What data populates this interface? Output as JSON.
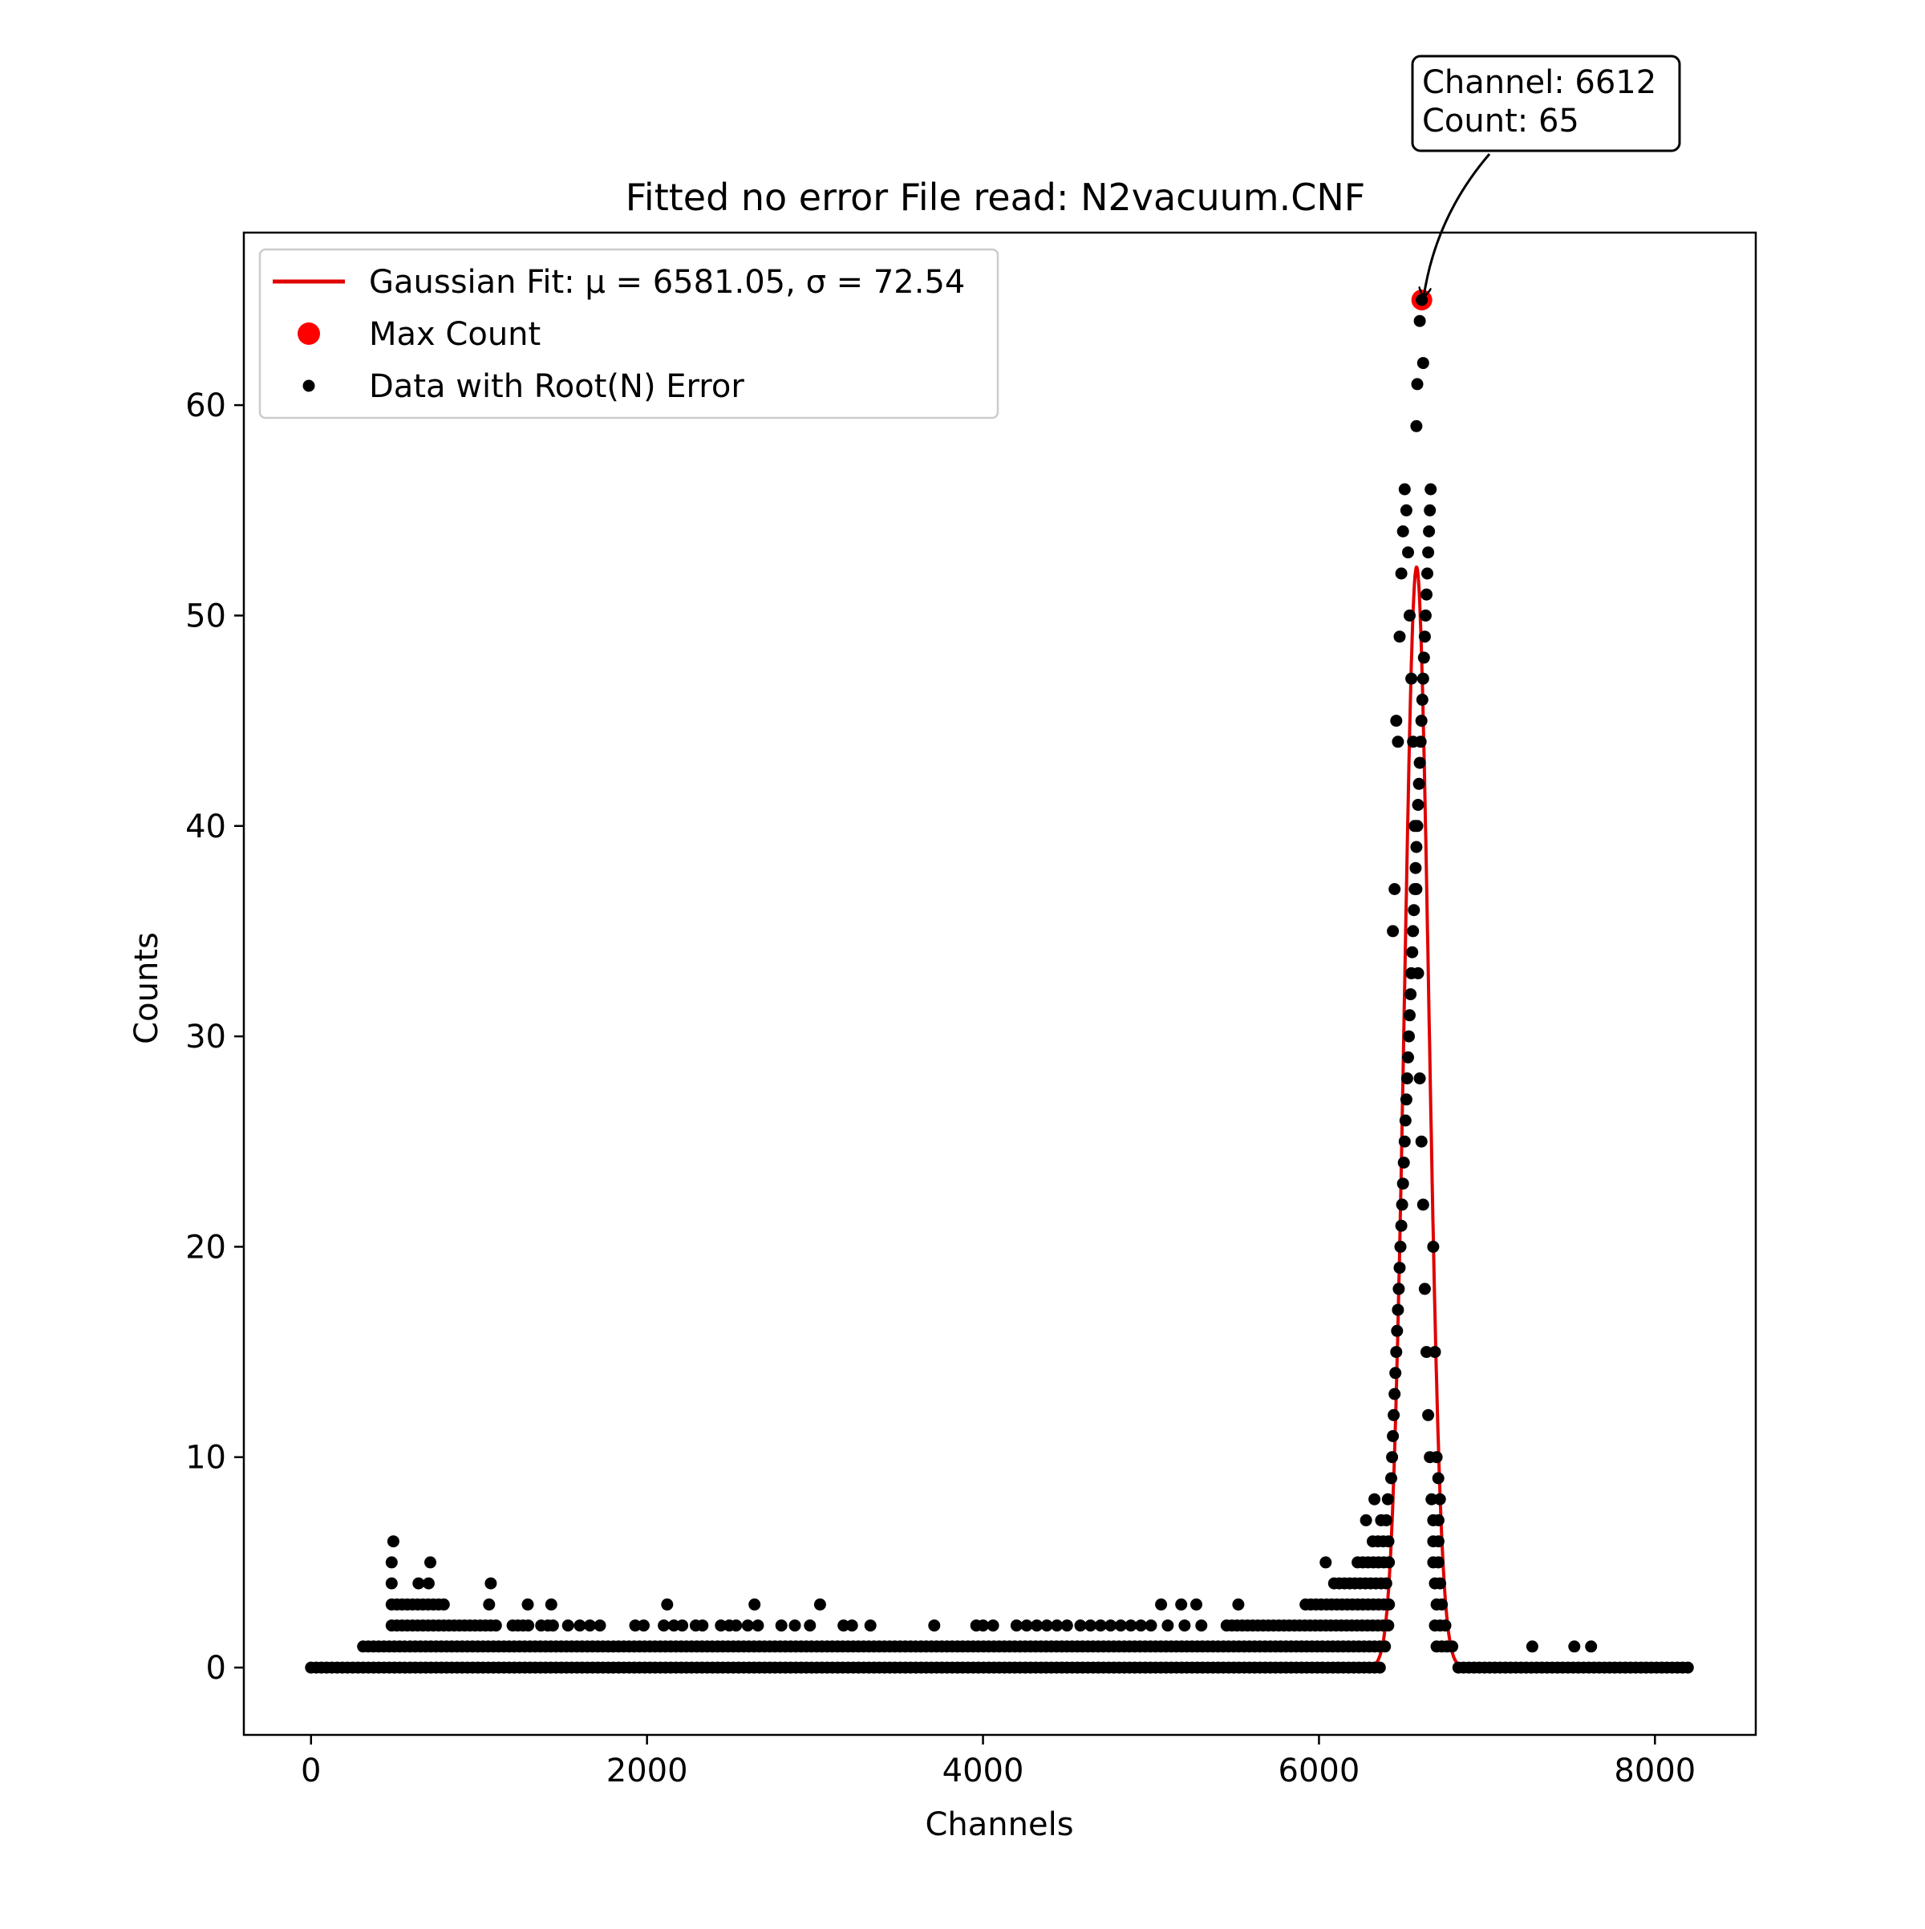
{
  "chart_data": {
    "type": "scatter",
    "title": "Fitted no error File read: N2vacuum.CNF",
    "xlabel": "Channels",
    "ylabel": "Counts",
    "xlim": [
      -400,
      8600
    ],
    "ylim": [
      -3.2,
      68.2
    ],
    "xticks": [
      0,
      2000,
      4000,
      6000,
      8000
    ],
    "yticks": [
      0,
      10,
      20,
      30,
      40,
      50,
      60
    ],
    "grid": false,
    "legend_position": "top-left",
    "legend": [
      {
        "key": "fit",
        "label_prefix": "Gaussian Fit: ",
        "label_math": "μ = 6581.05, σ = 72.54",
        "color": "#e00000",
        "marker": "line"
      },
      {
        "key": "max",
        "label": "Max Count",
        "color": "#ff0000",
        "marker": "big-dot"
      },
      {
        "key": "data",
        "label": "Data with Root(N) Error",
        "color": "#000000",
        "marker": "dot"
      }
    ],
    "fit": {
      "type": "gaussian",
      "mu": 6581.05,
      "sigma": 72.54,
      "amplitude": 52.3,
      "color": "#e00000"
    },
    "max_point": {
      "x": 6612,
      "y": 65,
      "color": "#ff0000"
    },
    "annotation": {
      "line1": "Channel: 6612",
      "line2": "Count: 65"
    },
    "series": [
      {
        "name": "Data with Root(N) Error",
        "color": "#000000",
        "ranges": [
          {
            "x_from": 0,
            "x_to": 6380,
            "y": 0
          },
          {
            "x_from": 6830,
            "x_to": 8200,
            "y": 0
          },
          {
            "x_from": 310,
            "x_to": 6420,
            "y": 1
          },
          {
            "x_from": 6700,
            "x_to": 6800,
            "y": 1
          },
          {
            "x_from": 480,
            "x_to": 1120,
            "y": 2
          },
          {
            "x_from": 1200,
            "x_to": 1300,
            "y": 2
          },
          {
            "x_from": 5450,
            "x_to": 6430,
            "y": 2
          },
          {
            "x_from": 6690,
            "x_to": 6760,
            "y": 2
          },
          {
            "x_from": 480,
            "x_to": 800,
            "y": 3
          },
          {
            "x_from": 5920,
            "x_to": 6430,
            "y": 3
          },
          {
            "x_from": 6700,
            "x_to": 6740,
            "y": 3
          },
          {
            "x_from": 6090,
            "x_to": 6430,
            "y": 4
          },
          {
            "x_from": 6690,
            "x_to": 6730,
            "y": 4
          },
          {
            "x_from": 6230,
            "x_to": 6430,
            "y": 5
          },
          {
            "x_from": 6680,
            "x_to": 6730,
            "y": 5
          },
          {
            "x_from": 6320,
            "x_to": 6430,
            "y": 6
          },
          {
            "x_from": 6680,
            "x_to": 6720,
            "y": 6
          },
          {
            "x_from": 6370,
            "x_to": 6430,
            "y": 7
          },
          {
            "x_from": 6680,
            "x_to": 6720,
            "y": 7
          },
          {
            "x_from": 6410,
            "x_to": 6430,
            "y": 8
          }
        ],
        "points": [
          {
            "x": 480,
            "y": 4
          },
          {
            "x": 640,
            "y": 4
          },
          {
            "x": 700,
            "y": 4
          },
          {
            "x": 480,
            "y": 5
          },
          {
            "x": 710,
            "y": 5
          },
          {
            "x": 490,
            "y": 6
          },
          {
            "x": 1070,
            "y": 4
          },
          {
            "x": 1060,
            "y": 3
          },
          {
            "x": 1290,
            "y": 3
          },
          {
            "x": 1430,
            "y": 3
          },
          {
            "x": 1370,
            "y": 2
          },
          {
            "x": 1410,
            "y": 2
          },
          {
            "x": 1440,
            "y": 2
          },
          {
            "x": 1530,
            "y": 2
          },
          {
            "x": 1600,
            "y": 2
          },
          {
            "x": 1660,
            "y": 2
          },
          {
            "x": 1720,
            "y": 2
          },
          {
            "x": 1930,
            "y": 2
          },
          {
            "x": 1980,
            "y": 2
          },
          {
            "x": 2100,
            "y": 2
          },
          {
            "x": 2160,
            "y": 2
          },
          {
            "x": 2210,
            "y": 2
          },
          {
            "x": 2290,
            "y": 2
          },
          {
            "x": 2330,
            "y": 2
          },
          {
            "x": 2440,
            "y": 2
          },
          {
            "x": 2490,
            "y": 2
          },
          {
            "x": 2530,
            "y": 2
          },
          {
            "x": 2600,
            "y": 2
          },
          {
            "x": 2660,
            "y": 2
          },
          {
            "x": 2800,
            "y": 2
          },
          {
            "x": 2880,
            "y": 2
          },
          {
            "x": 2970,
            "y": 2
          },
          {
            "x": 3170,
            "y": 2
          },
          {
            "x": 3220,
            "y": 2
          },
          {
            "x": 3330,
            "y": 2
          },
          {
            "x": 3710,
            "y": 2
          },
          {
            "x": 3960,
            "y": 2
          },
          {
            "x": 4000,
            "y": 2
          },
          {
            "x": 4060,
            "y": 2
          },
          {
            "x": 4200,
            "y": 2
          },
          {
            "x": 4260,
            "y": 2
          },
          {
            "x": 4320,
            "y": 2
          },
          {
            "x": 4380,
            "y": 2
          },
          {
            "x": 4440,
            "y": 2
          },
          {
            "x": 4500,
            "y": 2
          },
          {
            "x": 4580,
            "y": 2
          },
          {
            "x": 4640,
            "y": 2
          },
          {
            "x": 4700,
            "y": 2
          },
          {
            "x": 4760,
            "y": 2
          },
          {
            "x": 4820,
            "y": 2
          },
          {
            "x": 4880,
            "y": 2
          },
          {
            "x": 4940,
            "y": 2
          },
          {
            "x": 5000,
            "y": 2
          },
          {
            "x": 5100,
            "y": 2
          },
          {
            "x": 5200,
            "y": 2
          },
          {
            "x": 5300,
            "y": 2
          },
          {
            "x": 2120,
            "y": 3
          },
          {
            "x": 2640,
            "y": 3
          },
          {
            "x": 3030,
            "y": 3
          },
          {
            "x": 5060,
            "y": 3
          },
          {
            "x": 5180,
            "y": 3
          },
          {
            "x": 5270,
            "y": 3
          },
          {
            "x": 5520,
            "y": 3
          },
          {
            "x": 6040,
            "y": 5
          },
          {
            "x": 6280,
            "y": 7
          },
          {
            "x": 6330,
            "y": 8
          },
          {
            "x": 7270,
            "y": 1
          },
          {
            "x": 7520,
            "y": 1
          },
          {
            "x": 7620,
            "y": 1
          },
          {
            "x": 6430,
            "y": 9
          },
          {
            "x": 6435,
            "y": 10
          },
          {
            "x": 6440,
            "y": 11
          },
          {
            "x": 6445,
            "y": 12
          },
          {
            "x": 6450,
            "y": 13
          },
          {
            "x": 6455,
            "y": 14
          },
          {
            "x": 6460,
            "y": 15
          },
          {
            "x": 6465,
            "y": 16
          },
          {
            "x": 6470,
            "y": 17
          },
          {
            "x": 6475,
            "y": 18
          },
          {
            "x": 6480,
            "y": 19
          },
          {
            "x": 6485,
            "y": 20
          },
          {
            "x": 6490,
            "y": 21
          },
          {
            "x": 6495,
            "y": 22
          },
          {
            "x": 6500,
            "y": 23
          },
          {
            "x": 6505,
            "y": 24
          },
          {
            "x": 6510,
            "y": 25
          },
          {
            "x": 6515,
            "y": 26
          },
          {
            "x": 6520,
            "y": 27
          },
          {
            "x": 6525,
            "y": 28
          },
          {
            "x": 6530,
            "y": 29
          },
          {
            "x": 6535,
            "y": 30
          },
          {
            "x": 6540,
            "y": 31
          },
          {
            "x": 6545,
            "y": 32
          },
          {
            "x": 6550,
            "y": 33
          },
          {
            "x": 6555,
            "y": 34
          },
          {
            "x": 6560,
            "y": 35
          },
          {
            "x": 6565,
            "y": 36
          },
          {
            "x": 6570,
            "y": 37
          },
          {
            "x": 6575,
            "y": 38
          },
          {
            "x": 6580,
            "y": 39
          },
          {
            "x": 6585,
            "y": 40
          },
          {
            "x": 6590,
            "y": 41
          },
          {
            "x": 6595,
            "y": 42
          },
          {
            "x": 6600,
            "y": 43
          },
          {
            "x": 6605,
            "y": 44
          },
          {
            "x": 6610,
            "y": 45
          },
          {
            "x": 6615,
            "y": 46
          },
          {
            "x": 6620,
            "y": 47
          },
          {
            "x": 6625,
            "y": 48
          },
          {
            "x": 6630,
            "y": 49
          },
          {
            "x": 6635,
            "y": 50
          },
          {
            "x": 6640,
            "y": 51
          },
          {
            "x": 6645,
            "y": 52
          },
          {
            "x": 6650,
            "y": 53
          },
          {
            "x": 6655,
            "y": 54
          },
          {
            "x": 6660,
            "y": 55
          },
          {
            "x": 6665,
            "y": 56
          },
          {
            "x": 6440,
            "y": 35
          },
          {
            "x": 6450,
            "y": 37
          },
          {
            "x": 6460,
            "y": 45
          },
          {
            "x": 6470,
            "y": 44
          },
          {
            "x": 6480,
            "y": 49
          },
          {
            "x": 6490,
            "y": 52
          },
          {
            "x": 6500,
            "y": 54
          },
          {
            "x": 6510,
            "y": 56
          },
          {
            "x": 6520,
            "y": 55
          },
          {
            "x": 6530,
            "y": 53
          },
          {
            "x": 6540,
            "y": 50
          },
          {
            "x": 6550,
            "y": 47
          },
          {
            "x": 6560,
            "y": 44
          },
          {
            "x": 6570,
            "y": 40
          },
          {
            "x": 6580,
            "y": 37
          },
          {
            "x": 6590,
            "y": 33
          },
          {
            "x": 6600,
            "y": 28
          },
          {
            "x": 6610,
            "y": 25
          },
          {
            "x": 6620,
            "y": 22
          },
          {
            "x": 6630,
            "y": 18
          },
          {
            "x": 6640,
            "y": 15
          },
          {
            "x": 6650,
            "y": 12
          },
          {
            "x": 6660,
            "y": 10
          },
          {
            "x": 6670,
            "y": 8
          },
          {
            "x": 6680,
            "y": 20
          },
          {
            "x": 6690,
            "y": 15
          },
          {
            "x": 6700,
            "y": 10
          },
          {
            "x": 6710,
            "y": 9
          },
          {
            "x": 6720,
            "y": 8
          },
          {
            "x": 6580,
            "y": 59
          },
          {
            "x": 6585,
            "y": 61
          },
          {
            "x": 6600,
            "y": 64
          },
          {
            "x": 6620,
            "y": 62
          },
          {
            "x": 6612,
            "y": 65
          }
        ]
      }
    ]
  }
}
